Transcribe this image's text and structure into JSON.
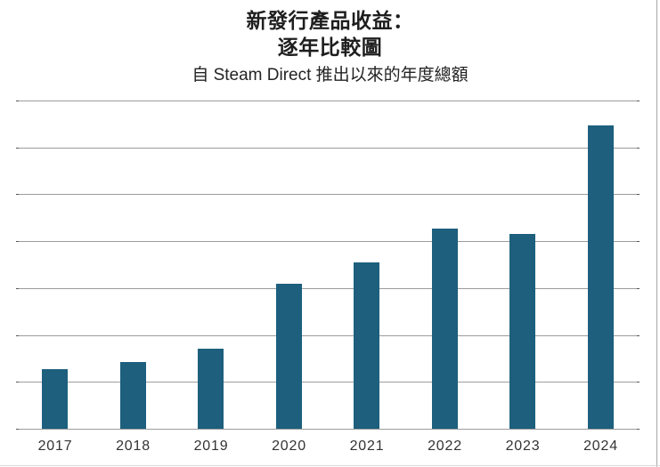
{
  "page": {
    "background": "#ffffff"
  },
  "header": {
    "title_line1": "新發行產品收益：",
    "title_line2": "逐年比較圖",
    "subtitle": "自 Steam Direct 推出以來的年度總額"
  },
  "chart_data": {
    "type": "bar",
    "title": "新發行產品收益：逐年比較圖",
    "subtitle": "自 Steam Direct 推出以來的年度總額",
    "categories": [
      "2017",
      "2018",
      "2019",
      "2020",
      "2021",
      "2022",
      "2023",
      "2024"
    ],
    "values": [
      1.27,
      1.42,
      1.71,
      3.09,
      3.55,
      4.26,
      4.16,
      6.47
    ],
    "value_unit": "gridline-units (y axis has no numeric labels; values estimated from unlabeled gridlines)",
    "xlabel": "",
    "ylabel": "",
    "ylim": [
      0,
      7
    ],
    "grid": "horizontal",
    "gridline_count": 8,
    "legend": "none",
    "bar_color": "#1d5f7d",
    "gridline_color": "#9c9c9c",
    "tick_color": "#555555",
    "label_color": "#333333"
  }
}
